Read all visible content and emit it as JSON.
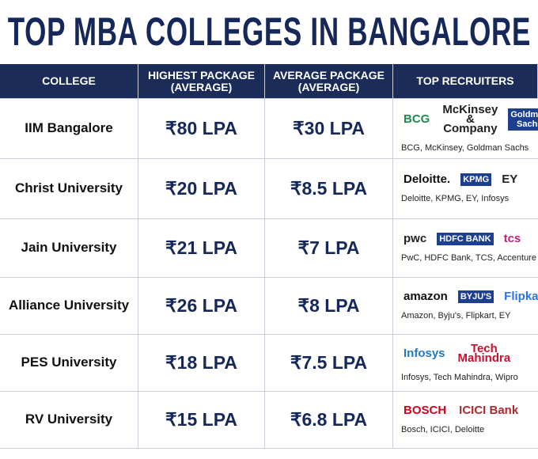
{
  "header": {
    "title": "TOP MBA COLLEGES IN BANGALORE"
  },
  "table": {
    "columns": [
      "COLLEGE",
      "HIGHEST PACKAGE\n(AVERAGE)",
      "AVERAGE PACKAGE\n(AVERAGE)",
      "TOP RECRUITERS"
    ],
    "rows": [
      {
        "college": "IIM Bangalore",
        "highest": "₹80 LPA",
        "average": "₹30 LPA",
        "logos": [
          {
            "text": "BCG",
            "color": "#1d8a4a"
          },
          {
            "text": "McKinsey\n& Company",
            "color": "#222222"
          },
          {
            "text": "Goldman\nSachs",
            "color": "#ffffff"
          }
        ],
        "recruiters": "BCG, McKinsey, Goldman Sachs"
      },
      {
        "college": "Christ University",
        "highest": "₹20 LPA",
        "average": "₹8.5 LPA",
        "logos": [
          {
            "text": "Deloitte.",
            "color": "#111111"
          },
          {
            "text": "KPMG",
            "color": "#ffffff"
          },
          {
            "text": "EY",
            "color": "#222222"
          }
        ],
        "recruiters": "Deloitte, KPMG, EY, Infosys"
      },
      {
        "college": "Jain University",
        "highest": "₹21 LPA",
        "average": "₹7 LPA",
        "logos": [
          {
            "text": "pwc",
            "color": "#222222"
          },
          {
            "text": "HDFC BANK",
            "color": "#ffffff"
          },
          {
            "text": "tcs",
            "color": "#c2207e"
          }
        ],
        "recruiters": "PwC, HDFC Bank, TCS, Accenture"
      },
      {
        "college": "Alliance University",
        "highest": "₹26 LPA",
        "average": "₹8 LPA",
        "logos": [
          {
            "text": "amazon",
            "color": "#111111"
          },
          {
            "text": "BYJU'S",
            "color": "#ffffff"
          },
          {
            "text": "Flipkart",
            "color": "#2874f0"
          }
        ],
        "recruiters": "Amazon, Byju's, Flipkart, EY"
      },
      {
        "college": "PES University",
        "highest": "₹18 LPA",
        "average": "₹7.5 LPA",
        "logos": [
          {
            "text": "Infosys",
            "color": "#1f78c1"
          },
          {
            "text": "Tech\nMahindra",
            "color": "#c8102e"
          }
        ],
        "recruiters": "Infosys, Tech Mahindra, Wipro"
      },
      {
        "college": "RV University",
        "highest": "₹15 LPA",
        "average": "₹6.8 LPA",
        "logos": [
          {
            "text": "BOSCH",
            "color": "#d6001c"
          },
          {
            "text": "ICICI Bank",
            "color": "#ae282e"
          }
        ],
        "recruiters": "Bosch, ICICI, Deloitte"
      }
    ]
  }
}
